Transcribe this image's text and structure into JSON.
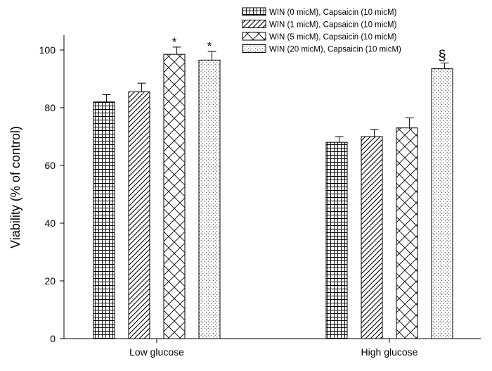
{
  "chart_data": {
    "type": "bar",
    "title": "",
    "xlabel": "",
    "ylabel": "Viability (% of control)",
    "ylim": [
      0,
      105
    ],
    "yticks": [
      0,
      20,
      40,
      60,
      80,
      100
    ],
    "categories": [
      "Low glucose",
      "High glucose"
    ],
    "series": [
      {
        "name": "WIN (0 micM), Capsaicin (10 micM)",
        "pattern": "grid",
        "values": [
          82,
          68
        ],
        "errors": [
          2.5,
          2
        ]
      },
      {
        "name": "WIN (1 micM), Capsaicin (10 micM)",
        "pattern": "diagonal",
        "values": [
          85.5,
          70
        ],
        "errors": [
          3,
          2.5
        ]
      },
      {
        "name": "WIN (5 micM), Capsaicin (10 micM)",
        "pattern": "crosshatch",
        "values": [
          98.5,
          73
        ],
        "errors": [
          2.5,
          3.5
        ]
      },
      {
        "name": "WIN (20 micM), Capsaicin (10 micM)",
        "pattern": "dots",
        "values": [
          96.5,
          93.5
        ],
        "errors": [
          3,
          2
        ]
      }
    ],
    "annotations": [
      {
        "text": "*",
        "category": "Low glucose",
        "series": 2
      },
      {
        "text": "*",
        "category": "Low glucose",
        "series": 3
      },
      {
        "text": "§",
        "category": "High glucose",
        "series": 3
      }
    ],
    "legend_position": "top-right",
    "colors": {
      "stroke": "#000000",
      "background": "#ffffff"
    }
  }
}
